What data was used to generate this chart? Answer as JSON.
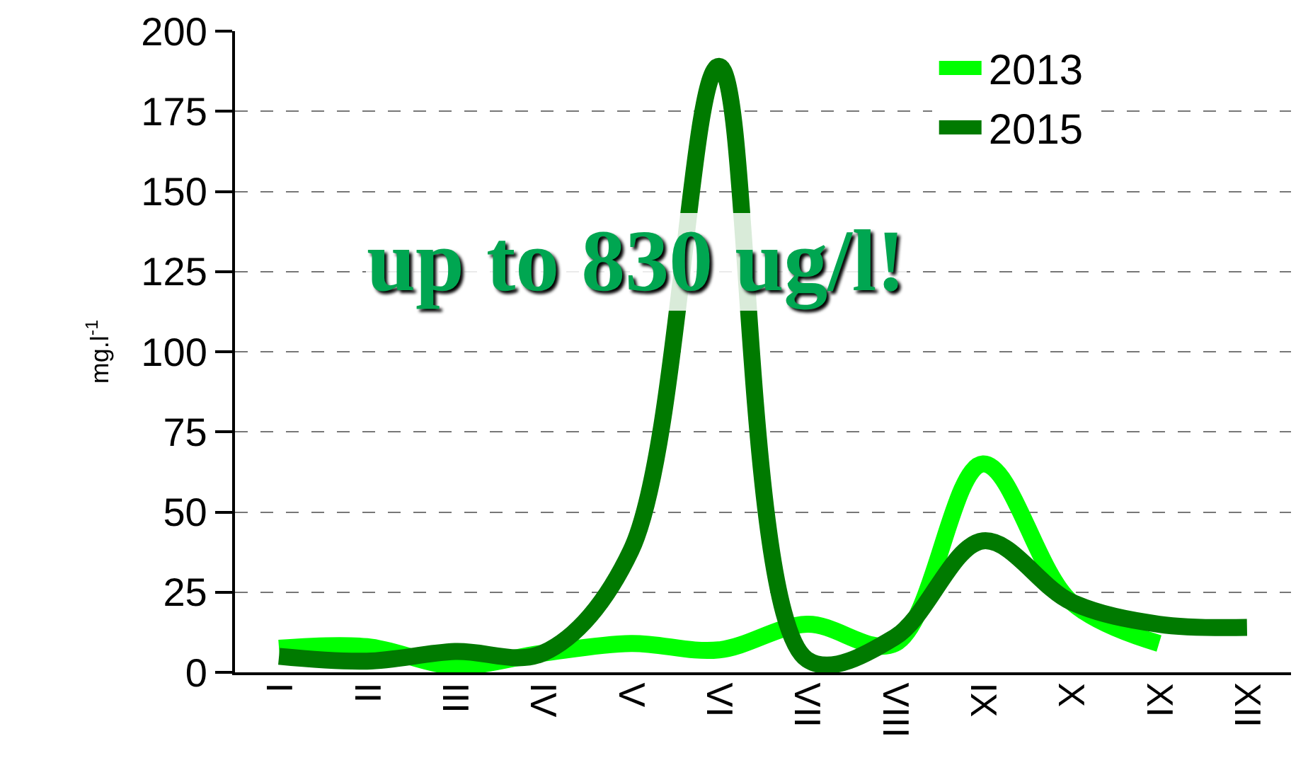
{
  "chart_data": {
    "type": "line",
    "ylabel": "mg.l$^{-1}$",
    "categories": [
      "I",
      "II",
      "III",
      "IV",
      "V",
      "VI",
      "VII",
      "VIII",
      "IX",
      "X",
      "XI",
      "XII"
    ],
    "series": [
      {
        "name": "2013",
        "color": "#00ff00",
        "values": [
          7.5,
          8,
          2,
          6,
          9,
          7,
          15,
          9,
          65,
          22,
          9,
          null
        ]
      },
      {
        "name": "2015",
        "color": "#007a00",
        "values": [
          5,
          3.5,
          6.5,
          6,
          38,
          189,
          4,
          11,
          41,
          22,
          15,
          14
        ]
      }
    ],
    "ylim": [
      0,
      200
    ],
    "yticks": [
      0,
      25,
      50,
      75,
      100,
      125,
      150,
      175,
      200
    ],
    "grid": "y",
    "legend": "top right",
    "marker": "none",
    "line_style": "solid",
    "annotations": [
      "up to 830 ug/l!"
    ]
  }
}
